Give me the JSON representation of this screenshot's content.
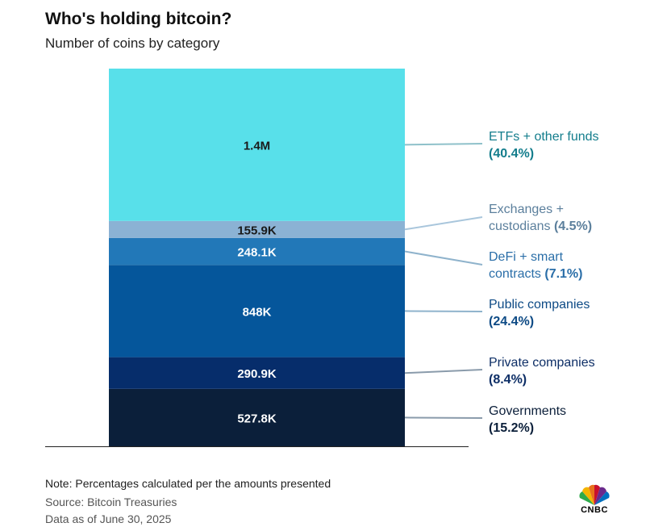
{
  "header": {
    "title": "Who's holding bitcoin?",
    "subtitle": "Number of coins by category"
  },
  "footer": {
    "note": "Note: Percentages calculated per the amounts presented",
    "source": "Source: Bitcoin Treasuries",
    "as_of": "Data as of June 30, 2025"
  },
  "logo": {
    "text": "CNBC",
    "icon": "peacock-icon"
  },
  "chart_data": {
    "type": "bar",
    "stacked": true,
    "title": "Who's holding bitcoin?",
    "subtitle": "Number of coins by category",
    "xlabel": "",
    "ylabel": "",
    "grid": false,
    "legend": "right",
    "series": [
      {
        "name": "Governments",
        "value": 527800,
        "value_label": "527.8K",
        "percent_label": "(15.2%)",
        "label_lines": [
          "Governments"
        ],
        "color": "#0b1f3a",
        "text_color": "#ffffff",
        "line_color": "#8a9bab"
      },
      {
        "name": "Private companies",
        "value": 290900,
        "value_label": "290.9K",
        "percent_label": "(8.4%)",
        "label_lines": [
          "Private companies"
        ],
        "color": "#062d6b",
        "text_color": "#ffffff",
        "line_color": "#8a9bab"
      },
      {
        "name": "Public companies",
        "value": 848000,
        "value_label": "848K",
        "percent_label": "(24.4%)",
        "label_lines": [
          "Public companies"
        ],
        "color": "#05569b",
        "text_color": "#ffffff",
        "line_color": "#8fb3cc"
      },
      {
        "name": "DeFi + smart contracts",
        "value": 248100,
        "value_label": "248.1K",
        "percent_label": "(7.1%)",
        "label_lines": [
          "DeFi + smart",
          "contracts"
        ],
        "color": "#2278b8",
        "text_color": "#ffffff",
        "line_color": "#8fb3cc"
      },
      {
        "name": "Exchanges + custodians",
        "value": 155900,
        "value_label": "155.9K",
        "percent_label": "(4.5%)",
        "label_lines": [
          "Exchanges +",
          "custodians"
        ],
        "color": "#8bb2d4",
        "text_color": "#1a1a1a",
        "line_color": "#a9c6dc"
      },
      {
        "name": "ETFs + other funds",
        "value": 1400000,
        "value_label": "1.4M",
        "percent_label": "(40.4%)",
        "label_lines": [
          "ETFs + other funds"
        ],
        "color": "#58e0ea",
        "text_color": "#1a1a1a",
        "line_color": "#8fc1ca"
      }
    ],
    "label_colors": {
      "ETFs + other funds": "#137d8c",
      "Exchanges + custodians": "#5b7f9c",
      "DeFi + smart contracts": "#2a6ea8",
      "Public companies": "#0d4a85",
      "Private companies": "#0d2e66",
      "Governments": "#0b1f3a"
    }
  }
}
